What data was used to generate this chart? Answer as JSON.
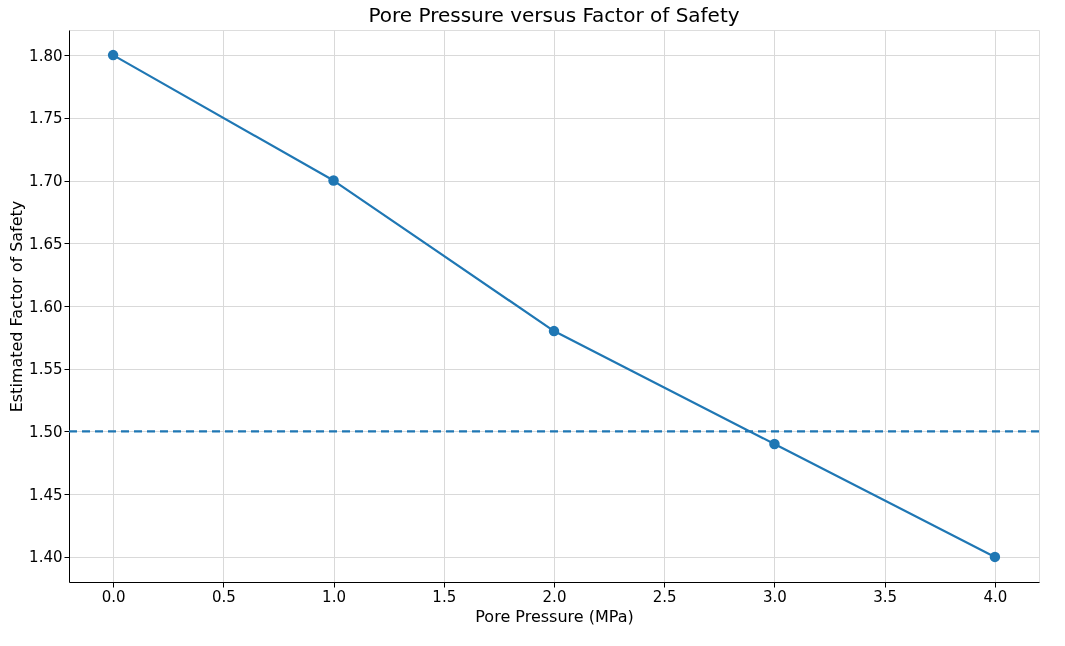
{
  "chart_data": {
    "type": "line",
    "title": "Pore Pressure versus Factor of Safety",
    "xlabel": "Pore Pressure (MPa)",
    "ylabel": "Estimated Factor of Safety",
    "x": [
      0,
      1,
      2,
      3,
      4
    ],
    "series": [
      {
        "color": "#1f77b4",
        "values": [
          1.8,
          1.7,
          1.58,
          1.49,
          1.4
        ]
      }
    ],
    "xlim": [
      -0.2,
      4.2
    ],
    "ylim": [
      1.38,
      1.82
    ],
    "xticks": [
      {
        "value": 0,
        "label": "0.0"
      },
      {
        "value": 0.5,
        "label": "0.5"
      },
      {
        "value": 1,
        "label": "1.0"
      },
      {
        "value": 1.5,
        "label": "1.5"
      },
      {
        "value": 2,
        "label": "2.0"
      },
      {
        "value": 2.5,
        "label": "2.5"
      },
      {
        "value": 3,
        "label": "3.0"
      },
      {
        "value": 3.5,
        "label": "3.5"
      },
      {
        "value": 4,
        "label": "4.0"
      }
    ],
    "yticks": [
      {
        "value": 1.4,
        "label": "1.40"
      },
      {
        "value": 1.45,
        "label": "1.45"
      },
      {
        "value": 1.5,
        "label": "1.50"
      },
      {
        "value": 1.55,
        "label": "1.55"
      },
      {
        "value": 1.6,
        "label": "1.60"
      },
      {
        "value": 1.65,
        "label": "1.65"
      },
      {
        "value": 1.7,
        "label": "1.70"
      },
      {
        "value": 1.75,
        "label": "1.75"
      },
      {
        "value": 1.8,
        "label": "1.80"
      }
    ],
    "ref_lines": [
      {
        "axis": "y",
        "value": 1.5,
        "color": "#1f77b4",
        "line_style": "dashed"
      }
    ],
    "grid": true,
    "marker": "circle",
    "line_style": "solid"
  }
}
